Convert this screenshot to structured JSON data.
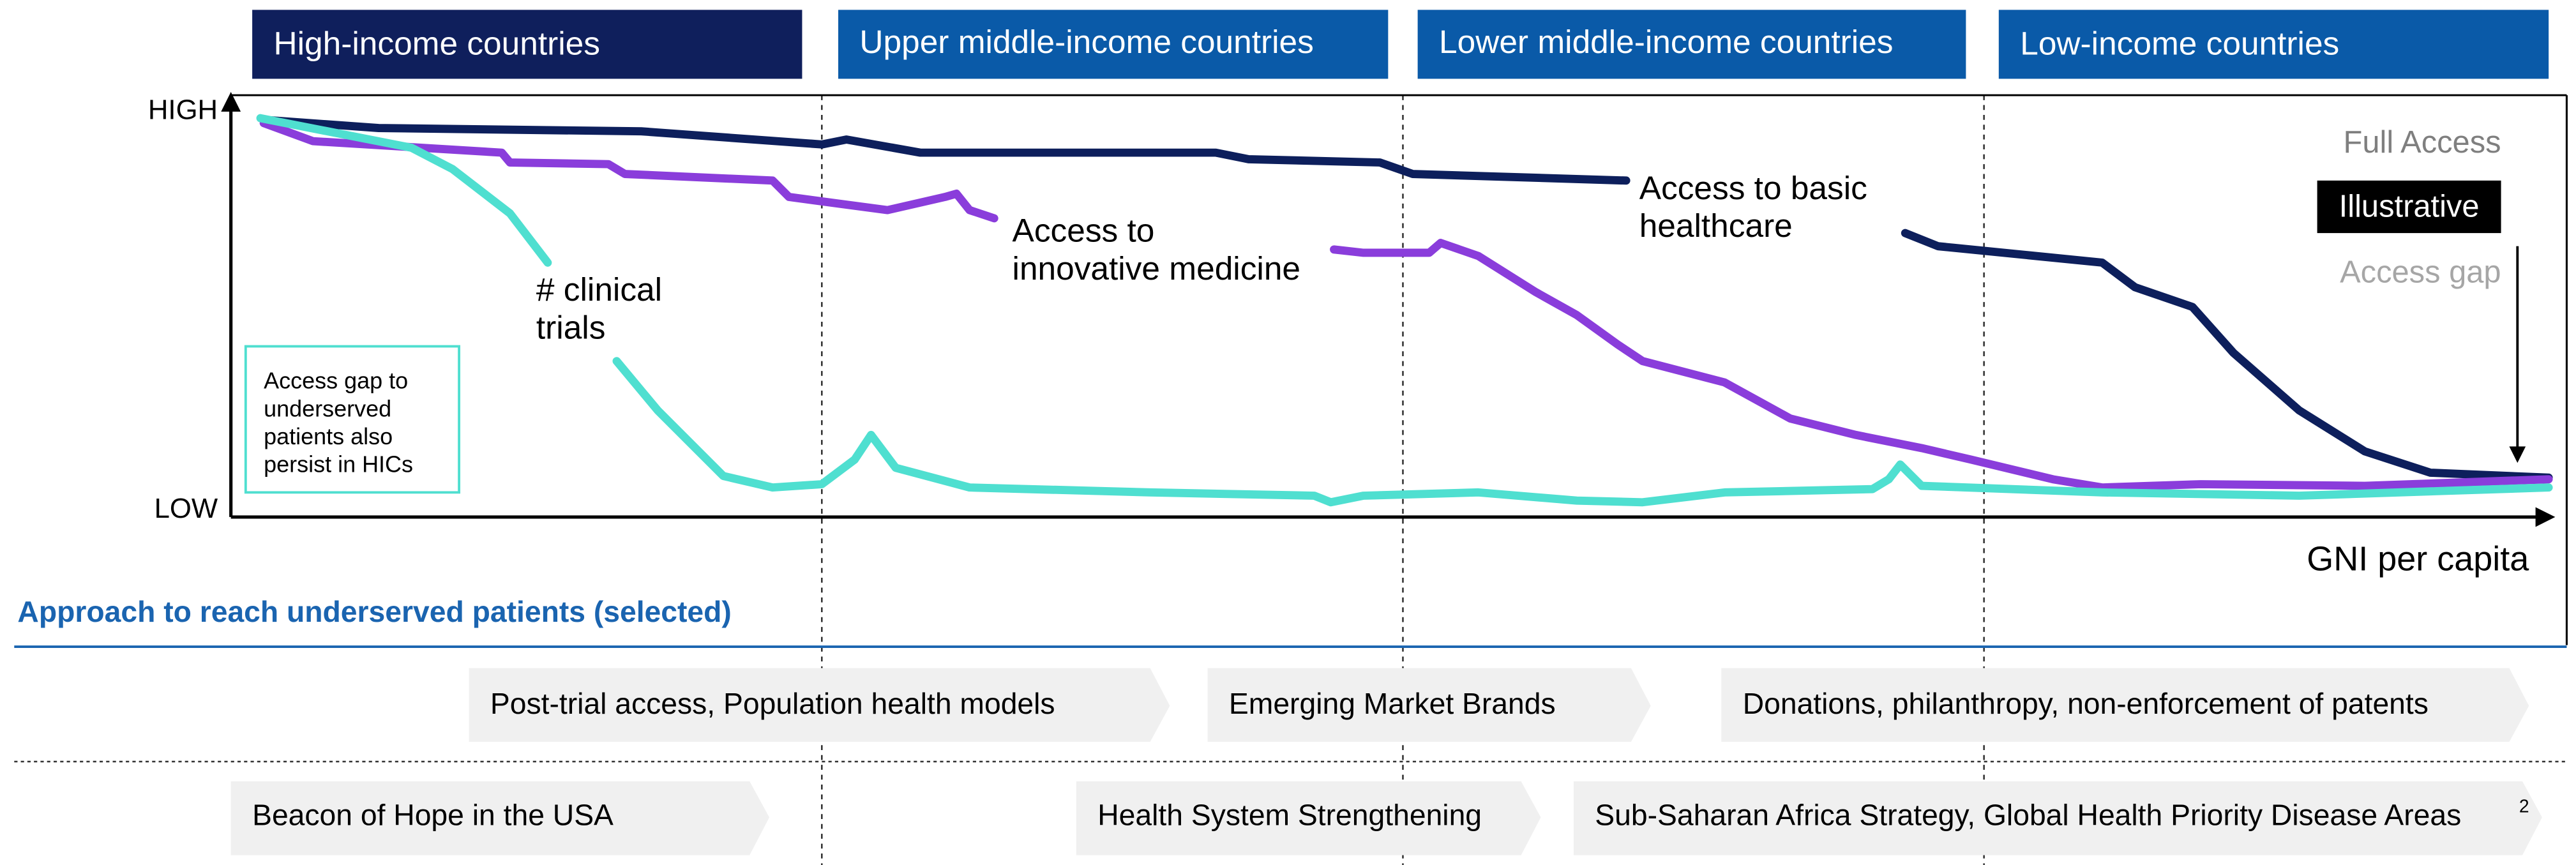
{
  "header": {
    "groups": [
      "High-income countries",
      "Upper middle-income countries",
      "Lower middle-income countries",
      "Low-income countries"
    ]
  },
  "chart": {
    "y_high": "HIGH",
    "y_low": "LOW",
    "x_label": "GNI per capita",
    "legend": {
      "top": "Full Access",
      "badge": "Illustrative",
      "bottom": "Access gap"
    },
    "curve_labels": {
      "basic": [
        "Access to basic",
        "healthcare"
      ],
      "innovative": [
        "Access to",
        "innovative medicine"
      ],
      "trials": [
        "# clinical",
        "trials"
      ]
    },
    "note": [
      "Access gap to",
      "underserved",
      "patients also",
      "persist in HICs"
    ]
  },
  "approach": {
    "title": "Approach to reach underserved patients (selected)",
    "row1": [
      "Post-trial access, Population health models",
      "Emerging Market Brands",
      "Donations, philanthropy, non-enforcement of patents"
    ],
    "row2": [
      "Beacon of Hope in the USA",
      "Health System Strengthening",
      "Sub-Saharan Africa Strategy, Global Health Priority Disease Areas"
    ],
    "footnote": "2"
  }
}
